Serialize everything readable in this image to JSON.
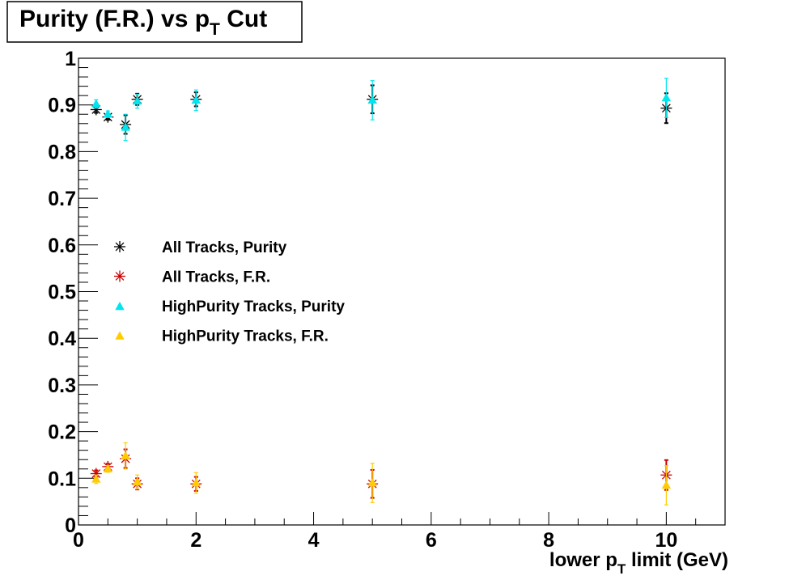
{
  "chart_data": {
    "type": "scatter",
    "title_main": "Purity (F.R.) vs p",
    "title_sub": "T",
    "title_tail": " Cut",
    "xlabel_main": "lower p",
    "xlabel_sub": "T",
    "xlabel_tail": " limit (GeV)",
    "ylabel": "",
    "xlim": [
      0,
      11
    ],
    "ylim": [
      0,
      1
    ],
    "x_ticks": [
      0,
      2,
      4,
      6,
      8,
      10
    ],
    "x_tick_labels": [
      "0",
      "2",
      "4",
      "6",
      "8",
      "10"
    ],
    "y_ticks": [
      0,
      0.1,
      0.2,
      0.3,
      0.4,
      0.5,
      0.6,
      0.7,
      0.8,
      0.9,
      1
    ],
    "y_tick_labels": [
      "0",
      "0.1",
      "0.2",
      "0.3",
      "0.4",
      "0.5",
      "0.6",
      "0.7",
      "0.8",
      "0.9",
      "1"
    ],
    "grid": false,
    "legend_position": "middle-left",
    "series": [
      {
        "name": "All Tracks, Purity",
        "marker": "asterisk",
        "color": "#000000",
        "x": [
          0.3,
          0.5,
          0.8,
          1,
          2,
          5,
          10
        ],
        "y": [
          0.89,
          0.874,
          0.858,
          0.912,
          0.912,
          0.912,
          0.893
        ],
        "err": [
          0.007,
          0.006,
          0.02,
          0.012,
          0.015,
          0.03,
          0.032
        ]
      },
      {
        "name": "All Tracks, F.R.",
        "marker": "asterisk",
        "color": "#cc0000",
        "x": [
          0.3,
          0.5,
          0.8,
          1,
          2,
          5,
          10
        ],
        "y": [
          0.11,
          0.125,
          0.142,
          0.088,
          0.088,
          0.088,
          0.107
        ],
        "err": [
          0.007,
          0.006,
          0.02,
          0.012,
          0.015,
          0.03,
          0.032
        ]
      },
      {
        "name": "HighPurity Tracks, Purity",
        "marker": "triangle",
        "color": "#00e5ee",
        "x": [
          0.3,
          0.5,
          0.8,
          1,
          2,
          5,
          10
        ],
        "y": [
          0.902,
          0.88,
          0.852,
          0.908,
          0.91,
          0.91,
          0.915
        ],
        "err": [
          0.009,
          0.007,
          0.028,
          0.015,
          0.022,
          0.042,
          0.042
        ]
      },
      {
        "name": "HighPurity Tracks, F.R.",
        "marker": "triangle",
        "color": "#ffcc00",
        "x": [
          0.3,
          0.5,
          0.8,
          1,
          2,
          5,
          10
        ],
        "y": [
          0.098,
          0.12,
          0.148,
          0.092,
          0.09,
          0.09,
          0.085
        ],
        "err": [
          0.009,
          0.007,
          0.028,
          0.015,
          0.022,
          0.042,
          0.042
        ]
      }
    ]
  }
}
